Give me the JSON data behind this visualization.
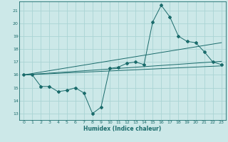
{
  "xlabel": "Humidex (Indice chaleur)",
  "bg_color": "#cce8e8",
  "grid_color": "#aad4d4",
  "line_color": "#1a6b6b",
  "xlim": [
    -0.5,
    23.5
  ],
  "ylim": [
    12.5,
    21.7
  ],
  "yticks": [
    13,
    14,
    15,
    16,
    17,
    18,
    19,
    20,
    21
  ],
  "xticks": [
    0,
    1,
    2,
    3,
    4,
    5,
    6,
    7,
    8,
    9,
    10,
    11,
    12,
    13,
    14,
    15,
    16,
    17,
    18,
    19,
    20,
    21,
    22,
    23
  ],
  "series1_x": [
    0,
    1,
    2,
    3,
    4,
    5,
    6,
    7,
    8,
    9,
    10,
    11,
    12,
    13,
    14,
    15,
    16,
    17,
    18,
    19,
    20,
    21,
    22,
    23
  ],
  "series1_y": [
    16.0,
    16.0,
    15.1,
    15.1,
    14.7,
    14.8,
    15.0,
    14.6,
    13.0,
    13.5,
    16.5,
    16.6,
    16.9,
    17.0,
    16.8,
    20.1,
    21.4,
    20.5,
    19.0,
    18.6,
    18.5,
    17.8,
    17.0,
    16.8
  ],
  "series2_x": [
    0,
    23
  ],
  "series2_y": [
    16.0,
    16.7
  ],
  "series3_x": [
    0,
    23
  ],
  "series3_y": [
    16.0,
    18.5
  ],
  "series4_x": [
    0,
    23
  ],
  "series4_y": [
    16.0,
    17.05
  ]
}
